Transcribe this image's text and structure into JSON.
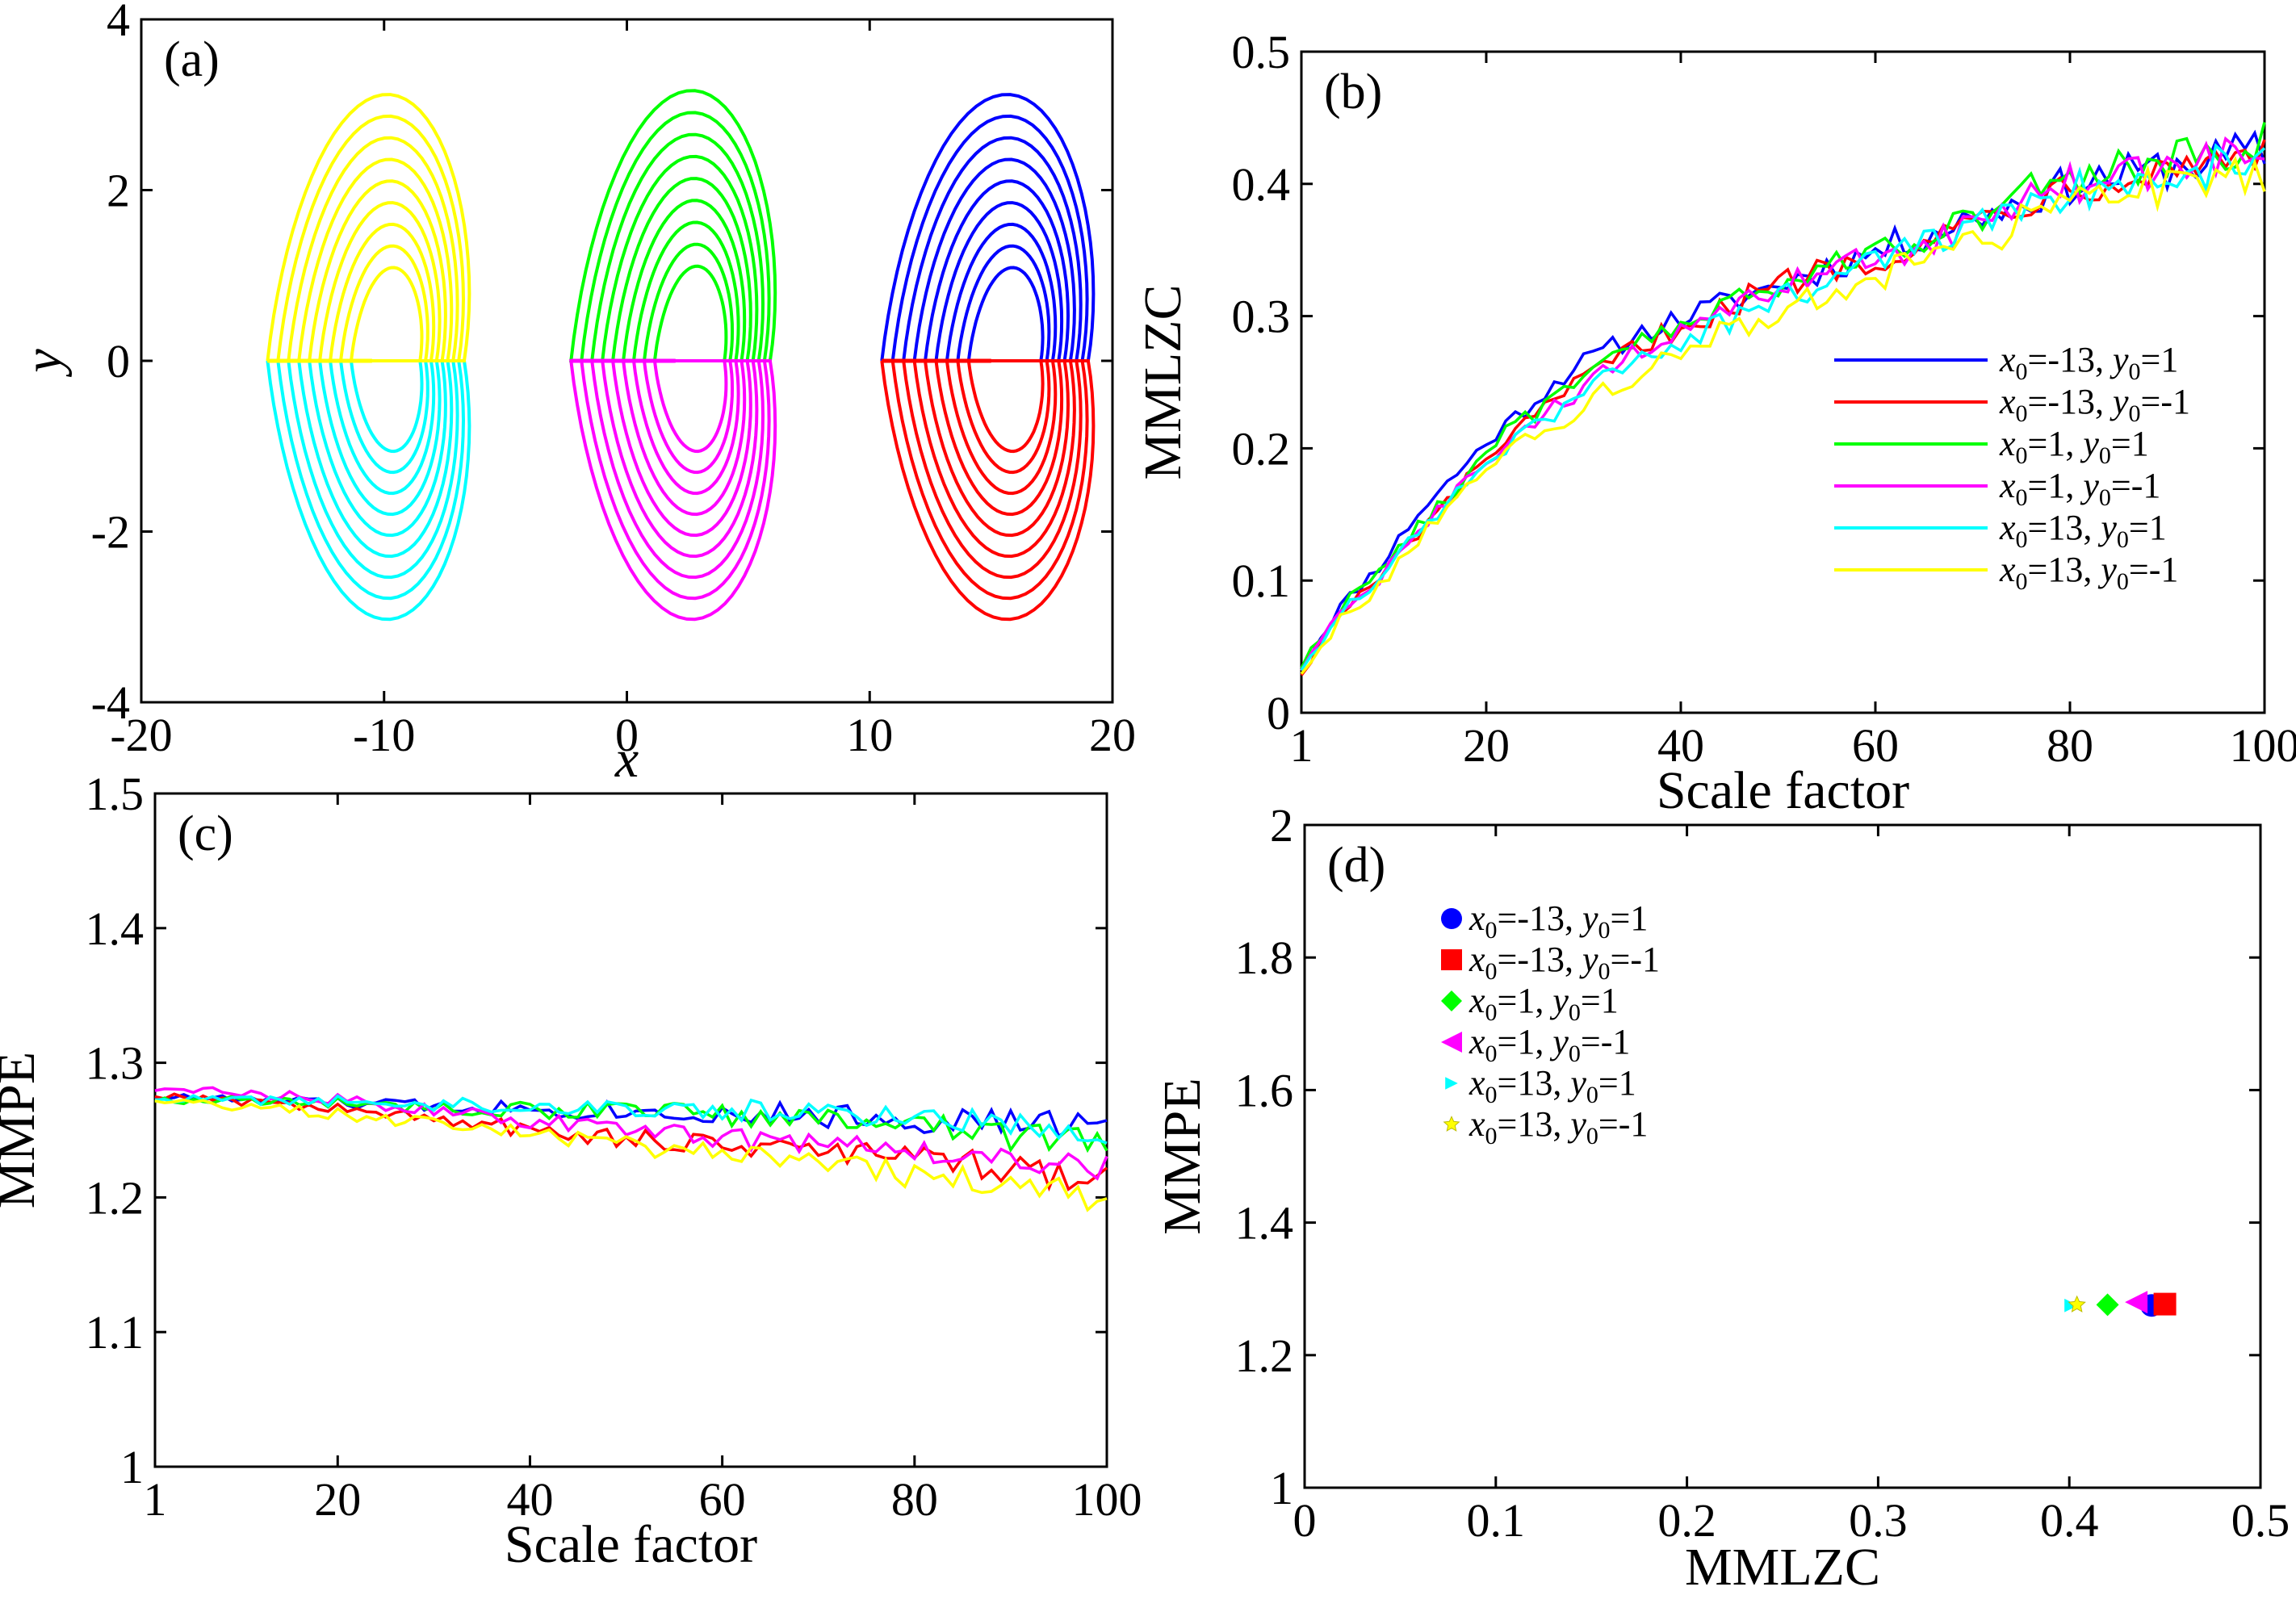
{
  "figure": {
    "panels": [
      "(a)",
      "(b)",
      "(c)",
      "(d)"
    ]
  },
  "chart_data": [
    {
      "id": "a",
      "panel_label": "(a)",
      "type": "line",
      "title": "",
      "xlabel": "x",
      "ylabel": "y",
      "xlim": [
        -20,
        20
      ],
      "ylim": [
        -4,
        4
      ],
      "xticks": [
        -20,
        -10,
        0,
        10,
        20
      ],
      "yticks": [
        -4,
        -2,
        0,
        2,
        4
      ],
      "xtick_labels": [
        "-20",
        "-10",
        "0",
        "10",
        "20"
      ],
      "ytick_labels": [
        "-4",
        "-2",
        "0",
        "2",
        "4"
      ],
      "grid": false,
      "series": [
        {
          "name": "x0=-13, y0=1",
          "color": "#0000ff",
          "x0": 10.5,
          "xc": 16,
          "ymax": 3.4,
          "xmax": 19,
          "sign": 1
        },
        {
          "name": "x0=-13, y0=-1",
          "color": "#ff0000",
          "x0": 10.5,
          "xc": 16,
          "ymax": 3.3,
          "xmax": 19,
          "sign": -1
        },
        {
          "name": "x0=1, y0=1",
          "color": "#00ff00",
          "x0": -2.3,
          "xc": 3,
          "ymax": 3.45,
          "xmax": 5.9,
          "sign": 1
        },
        {
          "name": "x0=1, y0=-1",
          "color": "#ff00ff",
          "x0": -2.3,
          "xc": 3,
          "ymax": 3.3,
          "xmax": 5.9,
          "sign": -1
        },
        {
          "name": "x0=13, y0=1",
          "color": "#00ffff",
          "x0": -14.8,
          "xc": -9.5,
          "ymax": 3.3,
          "xmax": -6.7,
          "sign": -1
        },
        {
          "name": "x0=13, y0=-1",
          "color": "#ffff00",
          "x0": -14.8,
          "xc": -9.5,
          "ymax": 3.4,
          "xmax": -6.7,
          "sign": 1
        }
      ]
    },
    {
      "id": "b",
      "panel_label": "(b)",
      "type": "line",
      "title": "",
      "xlabel": "Scale factor",
      "ylabel": "MMLZC",
      "xlim": [
        1,
        100
      ],
      "ylim": [
        0,
        0.5
      ],
      "xticks": [
        1,
        20,
        40,
        60,
        80,
        100
      ],
      "yticks": [
        0,
        0.1,
        0.2,
        0.3,
        0.4,
        0.5
      ],
      "xtick_labels": [
        "1",
        "20",
        "40",
        "60",
        "80",
        "100"
      ],
      "ytick_labels": [
        "0",
        "0.1",
        "0.2",
        "0.3",
        "0.4",
        "0.5"
      ],
      "grid": false,
      "legend": "right",
      "series": [
        {
          "name": "x0=-13, y0=1",
          "color": "#0000ff",
          "values": [
            0.035,
            0.08,
            0.11,
            0.15,
            0.18,
            0.21,
            0.235,
            0.26,
            0.275,
            0.29,
            0.3,
            0.31,
            0.32,
            0.33,
            0.34,
            0.35,
            0.36,
            0.37,
            0.38,
            0.39,
            0.4,
            0.405,
            0.41,
            0.415,
            0.42,
            0.425
          ]
        },
        {
          "name": "x0=-13, y0=-1",
          "color": "#ff0000",
          "values": [
            0.03,
            0.075,
            0.1,
            0.135,
            0.165,
            0.2,
            0.22,
            0.245,
            0.265,
            0.28,
            0.295,
            0.305,
            0.32,
            0.33,
            0.34,
            0.345,
            0.355,
            0.365,
            0.38,
            0.39,
            0.4,
            0.405,
            0.41,
            0.415,
            0.42,
            0.43
          ]
        },
        {
          "name": "x0=1, y0=1",
          "color": "#00ff00",
          "values": [
            0.035,
            0.08,
            0.105,
            0.14,
            0.17,
            0.205,
            0.225,
            0.245,
            0.265,
            0.285,
            0.295,
            0.305,
            0.32,
            0.33,
            0.34,
            0.35,
            0.36,
            0.37,
            0.38,
            0.395,
            0.405,
            0.41,
            0.415,
            0.42,
            0.425,
            0.43
          ]
        },
        {
          "name": "x0=1, y0=-1",
          "color": "#ff00ff",
          "values": [
            0.033,
            0.075,
            0.1,
            0.135,
            0.165,
            0.195,
            0.215,
            0.24,
            0.26,
            0.275,
            0.29,
            0.3,
            0.315,
            0.33,
            0.335,
            0.345,
            0.355,
            0.365,
            0.375,
            0.39,
            0.4,
            0.405,
            0.41,
            0.415,
            0.42,
            0.425
          ]
        },
        {
          "name": "x0=13, y0=1",
          "color": "#00ffff",
          "values": [
            0.033,
            0.075,
            0.1,
            0.135,
            0.165,
            0.195,
            0.215,
            0.235,
            0.255,
            0.27,
            0.285,
            0.295,
            0.31,
            0.32,
            0.33,
            0.34,
            0.35,
            0.36,
            0.37,
            0.385,
            0.395,
            0.4,
            0.405,
            0.41,
            0.415,
            0.42
          ]
        },
        {
          "name": "x0=13, y0=-1",
          "color": "#ffff00",
          "values": [
            0.03,
            0.07,
            0.095,
            0.13,
            0.16,
            0.19,
            0.21,
            0.225,
            0.245,
            0.26,
            0.275,
            0.29,
            0.3,
            0.31,
            0.32,
            0.33,
            0.34,
            0.35,
            0.36,
            0.375,
            0.385,
            0.39,
            0.395,
            0.4,
            0.405,
            0.41
          ]
        }
      ]
    },
    {
      "id": "c",
      "panel_label": "(c)",
      "type": "line",
      "title": "",
      "xlabel": "Scale factor",
      "ylabel": "MMPE",
      "xlim": [
        1,
        100
      ],
      "ylim": [
        1,
        1.5
      ],
      "xticks": [
        1,
        20,
        40,
        60,
        80,
        100
      ],
      "yticks": [
        1,
        1.1,
        1.2,
        1.3,
        1.4,
        1.5
      ],
      "xtick_labels": [
        "1",
        "20",
        "40",
        "60",
        "80",
        "100"
      ],
      "ytick_labels": [
        "1",
        "1.1",
        "1.2",
        "1.3",
        "1.4",
        "1.5"
      ],
      "grid": false,
      "series": [
        {
          "name": "x0=-13, y0=1",
          "color": "#0000ff",
          "values": [
            1.275,
            1.274,
            1.273,
            1.272,
            1.271,
            1.27,
            1.269,
            1.268,
            1.268,
            1.267,
            1.266,
            1.265,
            1.265,
            1.264,
            1.263,
            1.262,
            1.262,
            1.261,
            1.26,
            1.259,
            1.258,
            1.257,
            1.256,
            1.255,
            1.255,
            1.254
          ]
        },
        {
          "name": "x0=-13, y0=-1",
          "color": "#ff0000",
          "values": [
            1.276,
            1.274,
            1.272,
            1.27,
            1.268,
            1.265,
            1.262,
            1.259,
            1.256,
            1.253,
            1.25,
            1.247,
            1.245,
            1.243,
            1.241,
            1.239,
            1.237,
            1.235,
            1.233,
            1.231,
            1.228,
            1.226,
            1.223,
            1.22,
            1.215,
            1.21
          ]
        },
        {
          "name": "x0=1, y0=1",
          "color": "#00ff00",
          "values": [
            1.272,
            1.272,
            1.272,
            1.271,
            1.27,
            1.27,
            1.269,
            1.268,
            1.267,
            1.266,
            1.265,
            1.264,
            1.264,
            1.263,
            1.262,
            1.261,
            1.26,
            1.258,
            1.256,
            1.254,
            1.252,
            1.25,
            1.247,
            1.244,
            1.241,
            1.238
          ]
        },
        {
          "name": "x0=1, y0=-1",
          "color": "#ff00ff",
          "values": [
            1.28,
            1.279,
            1.278,
            1.276,
            1.274,
            1.272,
            1.269,
            1.266,
            1.263,
            1.26,
            1.257,
            1.254,
            1.251,
            1.249,
            1.247,
            1.245,
            1.243,
            1.241,
            1.239,
            1.237,
            1.235,
            1.233,
            1.231,
            1.229,
            1.227,
            1.225
          ]
        },
        {
          "name": "x0=13, y0=1",
          "color": "#00ffff",
          "values": [
            1.273,
            1.273,
            1.273,
            1.272,
            1.272,
            1.271,
            1.27,
            1.27,
            1.269,
            1.268,
            1.268,
            1.267,
            1.267,
            1.266,
            1.265,
            1.265,
            1.264,
            1.263,
            1.262,
            1.261,
            1.26,
            1.258,
            1.256,
            1.254,
            1.252,
            1.25
          ]
        },
        {
          "name": "x0=13, y0=-1",
          "color": "#ffff00",
          "values": [
            1.272,
            1.27,
            1.268,
            1.266,
            1.264,
            1.261,
            1.258,
            1.255,
            1.252,
            1.249,
            1.246,
            1.243,
            1.24,
            1.237,
            1.235,
            1.232,
            1.229,
            1.226,
            1.223,
            1.22,
            1.217,
            1.214,
            1.211,
            1.208,
            1.204,
            1.2
          ]
        }
      ]
    },
    {
      "id": "d",
      "panel_label": "(d)",
      "type": "scatter",
      "title": "",
      "xlabel": "MMLZC",
      "ylabel": "MMPE",
      "xlim": [
        0,
        0.5
      ],
      "ylim": [
        1,
        2
      ],
      "xticks": [
        0,
        0.1,
        0.2,
        0.3,
        0.4,
        0.5
      ],
      "yticks": [
        1,
        1.2,
        1.4,
        1.6,
        1.8,
        2
      ],
      "xtick_labels": [
        "0",
        "0.1",
        "0.2",
        "0.3",
        "0.4",
        "0.5"
      ],
      "ytick_labels": [
        "1",
        "1.2",
        "1.4",
        "1.6",
        "1.8",
        "2"
      ],
      "grid": false,
      "legend": "top-left",
      "series": [
        {
          "name": "x0=-13, y0=1",
          "color": "#0000ff",
          "marker": "circle",
          "x": 0.443,
          "y": 1.275
        },
        {
          "name": "x0=-13, y0=-1",
          "color": "#ff0000",
          "marker": "square",
          "x": 0.45,
          "y": 1.277
        },
        {
          "name": "x0=1, y0=1",
          "color": "#00ff00",
          "marker": "diamond",
          "x": 0.42,
          "y": 1.276
        },
        {
          "name": "x0=1, y0=-1",
          "color": "#ff00ff",
          "marker": "triangle-left",
          "x": 0.435,
          "y": 1.28
        },
        {
          "name": "x0=13, y0=1",
          "color": "#00ffff",
          "marker": "triangle-right",
          "x": 0.401,
          "y": 1.275
        },
        {
          "name": "x0=13, y0=-1",
          "color": "#ffff00",
          "marker": "star",
          "x": 0.404,
          "y": 1.276
        }
      ]
    }
  ],
  "legend_text": [
    {
      "name": "x0=-13, y0=1",
      "x": "x",
      "xsub": "0",
      "xval": "=-13, ",
      "y": "y",
      "ysub": "0",
      "yval": "=1"
    },
    {
      "name": "x0=-13, y0=-1",
      "x": "x",
      "xsub": "0",
      "xval": "=-13, ",
      "y": "y",
      "ysub": "0",
      "yval": "=-1"
    },
    {
      "name": "x0=1, y0=1",
      "x": "x",
      "xsub": "0",
      "xval": "=1, ",
      "y": "y",
      "ysub": "0",
      "yval": "=1"
    },
    {
      "name": "x0=1, y0=-1",
      "x": "x",
      "xsub": "0",
      "xval": "=1, ",
      "y": "y",
      "ysub": "0",
      "yval": "=-1"
    },
    {
      "name": "x0=13, y0=1",
      "x": "x",
      "xsub": "0",
      "xval": "=13, ",
      "y": "y",
      "ysub": "0",
      "yval": "=1"
    },
    {
      "name": "x0=13, y0=-1",
      "x": "x",
      "xsub": "0",
      "xval": "=13, ",
      "y": "y",
      "ysub": "0",
      "yval": "=-1"
    }
  ]
}
